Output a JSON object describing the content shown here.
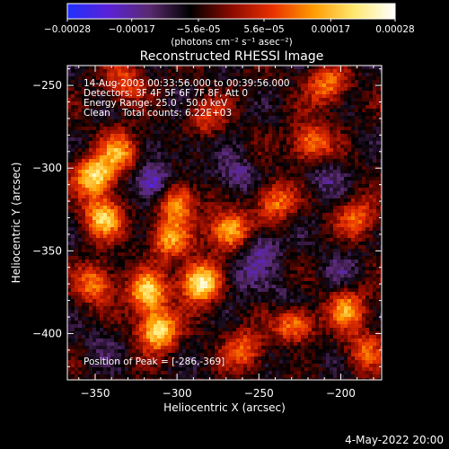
{
  "chart_data": {
    "type": "heatmap",
    "title": "Reconstructed RHESSI Image",
    "xlabel": "Heliocentric X (arcsec)",
    "ylabel": "Heliocentric Y (arcsec)",
    "xlim": [
      -367,
      -175
    ],
    "ylim": [
      -428,
      -238
    ],
    "x_ticks": [
      -350,
      -300,
      -250,
      -200
    ],
    "y_ticks": [
      -250,
      -300,
      -350,
      -400
    ],
    "colorbar": {
      "range": [
        -0.00028,
        0.00028
      ],
      "tick_values": [
        -0.00028,
        -0.00017,
        -5.6e-05,
        5.6e-05,
        0.00017,
        0.00028
      ],
      "tick_labels": [
        "-0.00028",
        "-0.00017",
        "-5.6e-05",
        "5.6e-05",
        "0.00017",
        "0.00028"
      ],
      "unit_label": "(photons cm⁻² s⁻¹ asec⁻²)",
      "colors": [
        "#2030ff",
        "#5a22d8",
        "#5a2a70",
        "#000000",
        "#8a0a00",
        "#e83000",
        "#ff9a00",
        "#ffe870",
        "#ffffff"
      ]
    },
    "info_lines": [
      "14-Aug-2003 00:33:56.000 to 00:39:56.000",
      "Detectors: 3F 4F 5F 6F 7F 8F, Att 0",
      "Energy Range: 25.0 - 50.0 keV",
      "Clean    Total counts: 6.22E+03"
    ],
    "peak_label": "Position of Peak = [-286,-369]",
    "peak_position": [
      -286,
      -369
    ],
    "hot_spots": [
      {
        "x": -350,
        "y": -305,
        "v": 0.00024
      },
      {
        "x": -335,
        "y": -290,
        "v": 0.00015
      },
      {
        "x": -345,
        "y": -330,
        "v": 0.0002
      },
      {
        "x": -300,
        "y": -320,
        "v": 0.00018
      },
      {
        "x": -305,
        "y": -343,
        "v": 0.00016
      },
      {
        "x": -268,
        "y": -338,
        "v": 0.00022
      },
      {
        "x": -286,
        "y": -369,
        "v": 0.00028
      },
      {
        "x": -318,
        "y": -375,
        "v": 0.00021
      },
      {
        "x": -312,
        "y": -398,
        "v": 0.00025
      },
      {
        "x": -350,
        "y": -370,
        "v": 0.00015
      },
      {
        "x": -240,
        "y": -320,
        "v": 0.00014
      },
      {
        "x": -218,
        "y": -285,
        "v": 0.00016
      },
      {
        "x": -208,
        "y": -250,
        "v": 0.00014
      },
      {
        "x": -190,
        "y": -330,
        "v": 0.00012
      },
      {
        "x": -228,
        "y": -395,
        "v": 0.00018
      },
      {
        "x": -196,
        "y": -385,
        "v": 0.00015
      },
      {
        "x": -332,
        "y": -248,
        "v": 0.0001
      },
      {
        "x": -283,
        "y": -270,
        "v": 9e-05
      },
      {
        "x": -259,
        "y": -410,
        "v": 0.00012
      },
      {
        "x": -185,
        "y": -410,
        "v": 0.0001
      }
    ],
    "cold_spots": [
      {
        "x": -315,
        "y": -310,
        "v": -0.00022
      },
      {
        "x": -292,
        "y": -285,
        "v": -0.0001
      },
      {
        "x": -265,
        "y": -305,
        "v": -0.00014
      },
      {
        "x": -248,
        "y": -348,
        "v": -0.00015
      },
      {
        "x": -262,
        "y": -365,
        "v": -0.00012
      },
      {
        "x": -232,
        "y": -380,
        "v": -0.0001
      },
      {
        "x": -212,
        "y": -305,
        "v": -0.00012
      },
      {
        "x": -200,
        "y": -360,
        "v": -0.0001
      },
      {
        "x": -345,
        "y": -405,
        "v": -9e-05
      },
      {
        "x": -225,
        "y": -410,
        "v": -9e-05
      },
      {
        "x": -300,
        "y": -258,
        "v": -6e-05
      }
    ]
  },
  "footer": {
    "date": "4-May-2022 20:00"
  }
}
